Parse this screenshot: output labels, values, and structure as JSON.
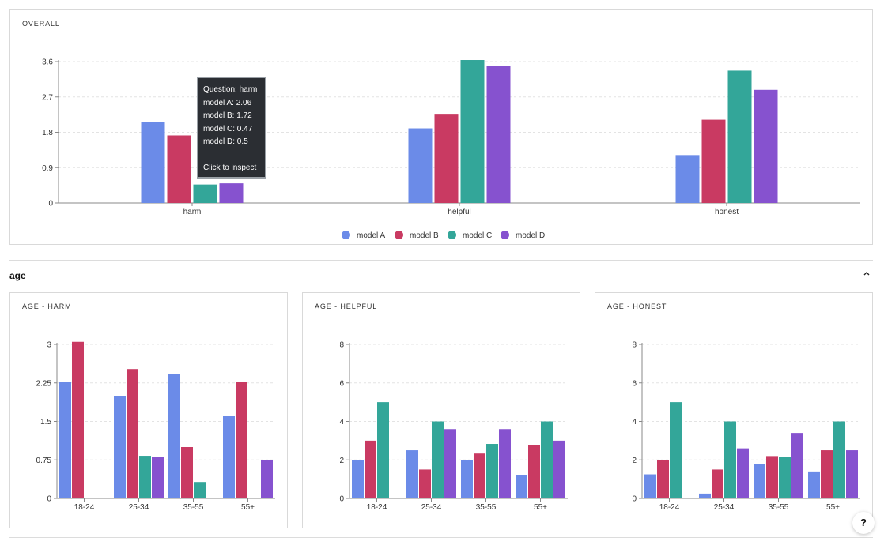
{
  "section": {
    "title": "age"
  },
  "tooltip": {
    "lines": [
      "Question: harm",
      "model A: 2.06",
      "model B: 1.72",
      "model C: 0.47",
      "model D: 0.5"
    ],
    "action": "Click to inspect"
  },
  "help_label": "?",
  "series_colors": {
    "model A": "#6b8be8",
    "model B": "#c93a62",
    "model C": "#33a699",
    "model D": "#8652cf"
  },
  "chart_data": [
    {
      "id": "overall",
      "type": "bar",
      "title": "OVERALL",
      "categories": [
        "harm",
        "helpful",
        "honest"
      ],
      "yticks": [
        0,
        0.9,
        1.8,
        2.7,
        3.6
      ],
      "ylim": [
        0,
        3.6
      ],
      "grid": true,
      "legend": "bottom-center",
      "series": [
        {
          "name": "model A",
          "values": [
            2.06,
            1.9,
            1.22
          ]
        },
        {
          "name": "model B",
          "values": [
            1.72,
            2.27,
            2.12
          ]
        },
        {
          "name": "model C",
          "values": [
            0.47,
            3.64,
            3.37
          ]
        },
        {
          "name": "model D",
          "values": [
            0.5,
            3.48,
            2.88
          ]
        }
      ]
    },
    {
      "id": "age-harm",
      "type": "bar",
      "title": "AGE - HARM",
      "categories": [
        "18-24",
        "25-34",
        "35-55",
        "55+"
      ],
      "yticks": [
        0,
        0.75,
        1.5,
        2.25,
        3
      ],
      "ylim": [
        0,
        3
      ],
      "grid": true,
      "series": [
        {
          "name": "model A",
          "values": [
            2.27,
            2.0,
            2.42,
            1.6
          ]
        },
        {
          "name": "model B",
          "values": [
            3.05,
            2.52,
            1.0,
            2.27
          ]
        },
        {
          "name": "model C",
          "values": [
            0,
            0.83,
            0.32,
            0
          ]
        },
        {
          "name": "model D",
          "values": [
            0,
            0.8,
            0,
            0.75
          ]
        }
      ]
    },
    {
      "id": "age-helpful",
      "type": "bar",
      "title": "AGE - HELPFUL",
      "categories": [
        "18-24",
        "25-34",
        "35-55",
        "55+"
      ],
      "yticks": [
        0,
        2,
        4,
        6,
        8
      ],
      "ylim": [
        0,
        8
      ],
      "grid": true,
      "series": [
        {
          "name": "model A",
          "values": [
            2.0,
            2.5,
            2.0,
            1.2
          ]
        },
        {
          "name": "model B",
          "values": [
            3.0,
            1.5,
            2.33,
            2.75
          ]
        },
        {
          "name": "model C",
          "values": [
            5.0,
            4.0,
            2.83,
            4.0
          ]
        },
        {
          "name": "model D",
          "values": [
            0,
            3.6,
            3.6,
            3.0
          ]
        }
      ]
    },
    {
      "id": "age-honest",
      "type": "bar",
      "title": "AGE - HONEST",
      "categories": [
        "18-24",
        "25-34",
        "35-55",
        "55+"
      ],
      "yticks": [
        0,
        2,
        4,
        6,
        8
      ],
      "ylim": [
        0,
        8
      ],
      "grid": true,
      "series": [
        {
          "name": "model A",
          "values": [
            1.25,
            0.25,
            1.8,
            1.4
          ]
        },
        {
          "name": "model B",
          "values": [
            2.0,
            1.5,
            2.2,
            2.5
          ]
        },
        {
          "name": "model C",
          "values": [
            5.0,
            4.0,
            2.17,
            4.0
          ]
        },
        {
          "name": "model D",
          "values": [
            0,
            2.6,
            3.4,
            2.5
          ]
        }
      ]
    }
  ]
}
